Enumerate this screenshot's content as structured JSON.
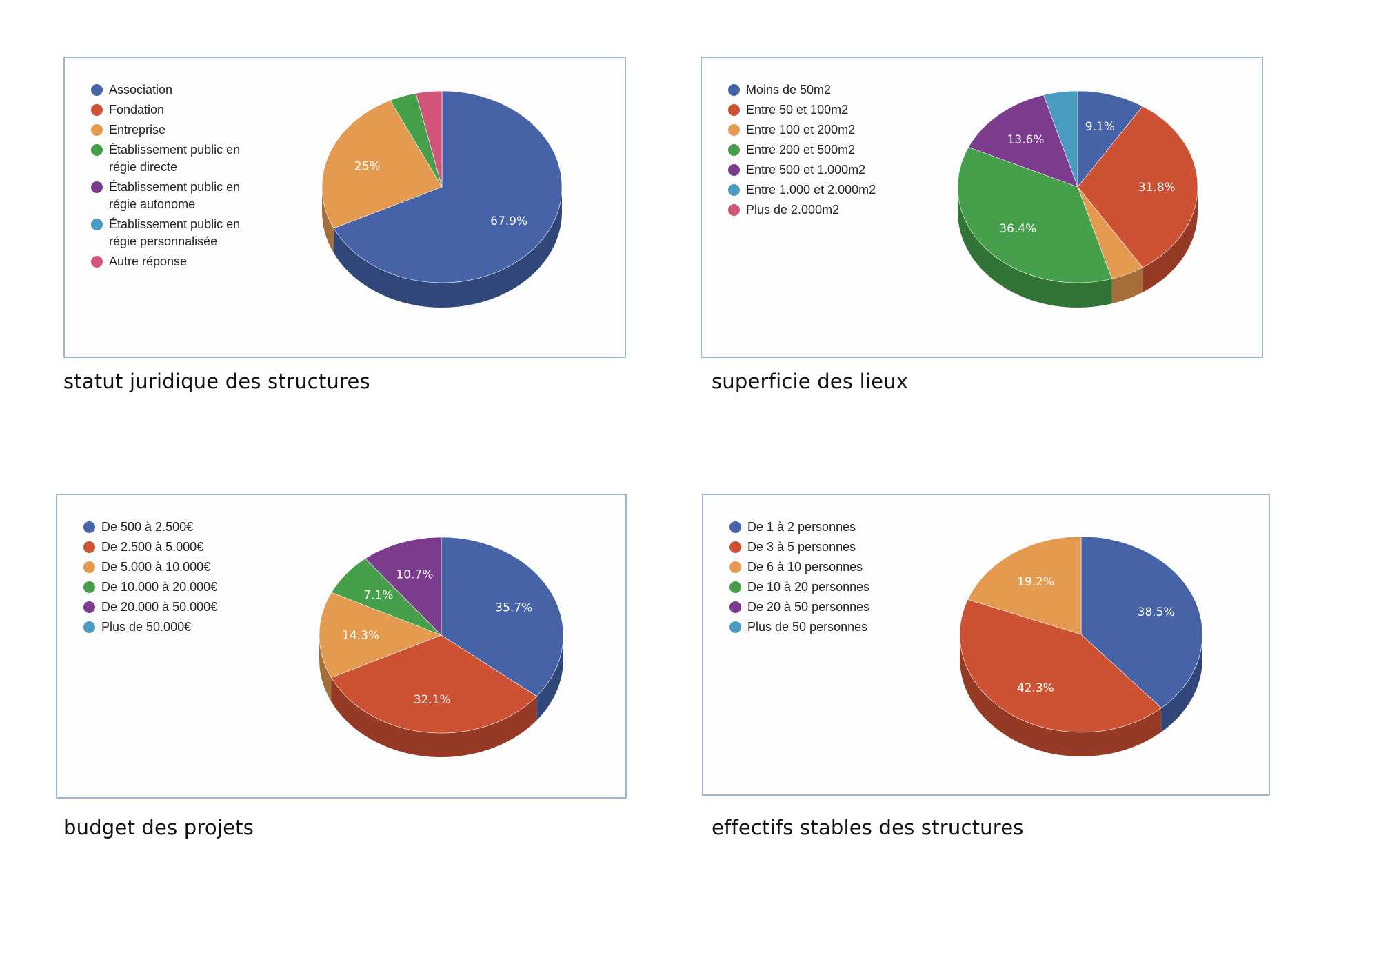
{
  "chart_data": [
    {
      "type": "pie",
      "title": "statut juridique des structures",
      "legend_position": "left",
      "categories": [
        "Association",
        "Fondation",
        "Entreprise",
        "Établissement public en régie directe",
        "Établissement public en régie autonome",
        "Établissement public en régie personnalisée",
        "Autre réponse"
      ],
      "values": [
        67.9,
        0,
        25,
        3.6,
        0,
        0,
        3.5
      ],
      "value_labels": [
        "67.9%",
        "",
        "25%",
        "",
        "",
        "",
        ""
      ],
      "colors": [
        "#4663a8",
        "#cd5133",
        "#e49a4f",
        "#46a04b",
        "#7c3c8e",
        "#4a9bc0",
        "#d1567a"
      ]
    },
    {
      "type": "pie",
      "title": "superficie des lieux",
      "legend_position": "left",
      "categories": [
        "Moins de 50m2",
        "Entre 50 et 100m2",
        "Entre 100 et 200m2",
        "Entre 200 et 500m2",
        "Entre 500 et 1.000m2",
        "Entre 1.000 et 2.000m2",
        "Plus de 2.000m2"
      ],
      "values": [
        9.1,
        31.8,
        4.5,
        36.4,
        13.6,
        4.6,
        0
      ],
      "value_labels": [
        "9.1%",
        "31.8%",
        "",
        "36.4%",
        "13.6%",
        "",
        ""
      ],
      "colors": [
        "#4663a8",
        "#cd5133",
        "#e49a4f",
        "#46a04b",
        "#7c3c8e",
        "#4a9bc0",
        "#d1567a"
      ]
    },
    {
      "type": "pie",
      "title": "budget des projets",
      "legend_position": "left",
      "categories": [
        "De 500 à 2.500€",
        "De 2.500 à 5.000€",
        "De 5.000 à 10.000€",
        "De 10.000 à 20.000€",
        "De 20.000 à 50.000€",
        "Plus de 50.000€"
      ],
      "values": [
        35.7,
        32.1,
        14.3,
        7.1,
        10.7,
        0
      ],
      "value_labels": [
        "35.7%",
        "32.1%",
        "14.3%",
        "7.1%",
        "10.7%",
        ""
      ],
      "colors": [
        "#4663a8",
        "#cd5133",
        "#e49a4f",
        "#46a04b",
        "#7c3c8e",
        "#4a9bc0"
      ]
    },
    {
      "type": "pie",
      "title": "effectifs stables des structures",
      "legend_position": "left",
      "categories": [
        "De 1 à 2 personnes",
        "De 3 à 5 personnes",
        "De 6 à 10 personnes",
        "De 10 à 20 personnes",
        "De 20 à 50 personnes",
        "Plus de 50 personnes"
      ],
      "values": [
        38.5,
        42.3,
        19.2,
        0,
        0,
        0
      ],
      "value_labels": [
        "38.5%",
        "42.3%",
        "19.2%",
        "",
        "",
        ""
      ],
      "colors": [
        "#4663a8",
        "#cd5133",
        "#e49a4f",
        "#46a04b",
        "#7c3c8e",
        "#4a9bc0"
      ]
    }
  ]
}
